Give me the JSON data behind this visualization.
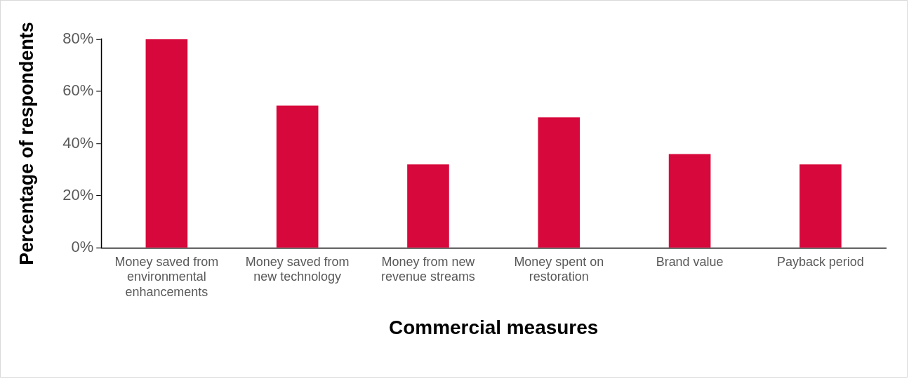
{
  "chart_data": {
    "type": "bar",
    "xlabel": "Commercial measures",
    "ylabel": "Percentage of respondents",
    "categories": [
      "Money saved from environmental enhancements",
      "Money saved from new technology",
      "Money from new revenue streams",
      "Money spent on restoration",
      "Brand value",
      "Payback period"
    ],
    "values": [
      80,
      54.5,
      32,
      50,
      36,
      32
    ],
    "color": "#d7083b",
    "ylim": [
      0,
      80
    ],
    "yticks": [
      {
        "value": 0,
        "label": "0%"
      },
      {
        "value": 20,
        "label": "20%"
      },
      {
        "value": 40,
        "label": "40%"
      },
      {
        "value": 60,
        "label": "60%"
      },
      {
        "value": 80,
        "label": "80%"
      }
    ],
    "grid": false,
    "legend": false
  }
}
